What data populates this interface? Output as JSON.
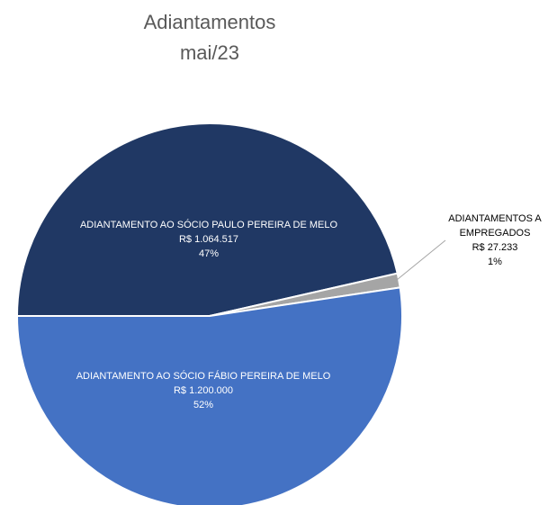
{
  "chart_data": {
    "type": "pie",
    "title": "Adiantamentos",
    "subtitle": "mai/23",
    "categories": [
      "ADIANTAMENTO AO SÓCIO PAULO PEREIRA DE MELO",
      "ADIANTAMENTOS A EMPREGADOS",
      "ADIANTAMENTO AO SÓCIO FÁBIO PEREIRA DE MELO"
    ],
    "values": [
      1064517,
      27233,
      1200000
    ],
    "value_labels": [
      "R$ 1.064.517",
      "R$ 27.233",
      "R$ 1.200.000"
    ],
    "percents": [
      47,
      1,
      52
    ],
    "percent_labels": [
      "47%",
      "1%",
      "52%"
    ],
    "colors": [
      "#203864",
      "#a5a5a5",
      "#4472c4"
    ]
  }
}
